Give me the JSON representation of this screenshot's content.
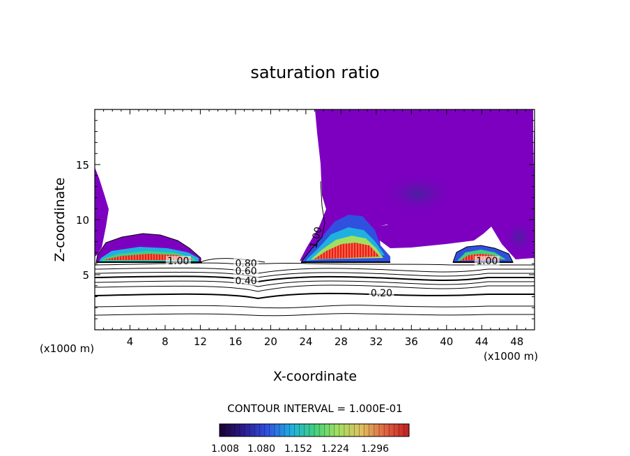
{
  "chart_data": {
    "type": "contour",
    "title": "saturation ratio",
    "xlabel": "X-coordinate",
    "ylabel": "Z-coordinate",
    "x_unit_label": "(x1000 m)",
    "z_unit_label": "(x1000 m)",
    "xlim": [
      0,
      50
    ],
    "ylim": [
      0,
      20
    ],
    "x_ticks": [
      4,
      8,
      12,
      16,
      20,
      24,
      28,
      32,
      36,
      40,
      44,
      48
    ],
    "y_ticks": [
      5,
      10,
      15
    ],
    "contour_interval_text": "CONTOUR INTERVAL = 1.000E-01",
    "contour_labels": [
      {
        "text": "1.00",
        "x": 9.5,
        "z": 6.0
      },
      {
        "text": "0.80",
        "x": 17.2,
        "z": 5.8
      },
      {
        "text": "0.60",
        "x": 17.2,
        "z": 5.1
      },
      {
        "text": "0.40",
        "x": 17.2,
        "z": 4.2
      },
      {
        "text": "0.20",
        "x": 32.6,
        "z": 3.1
      },
      {
        "text": "1.00",
        "x": 25.5,
        "z": 8.3
      },
      {
        "text": "1.00",
        "x": 44.6,
        "z": 6.0
      }
    ],
    "colorbar": {
      "tick_labels": [
        "1.008",
        "1.080",
        "1.152",
        "1.224",
        "1.296"
      ],
      "colors": [
        "#1a0030",
        "#2a1a8a",
        "#3050e0",
        "#20b0e0",
        "#40d080",
        "#a0e060",
        "#e0c060",
        "#e06040",
        "#c02020"
      ]
    },
    "shading_color": "#7d00c0",
    "bottom_contour_levels": [
      0.1,
      0.2,
      0.3,
      0.4,
      0.5,
      0.6,
      0.7,
      0.8,
      0.9,
      1.0
    ]
  }
}
